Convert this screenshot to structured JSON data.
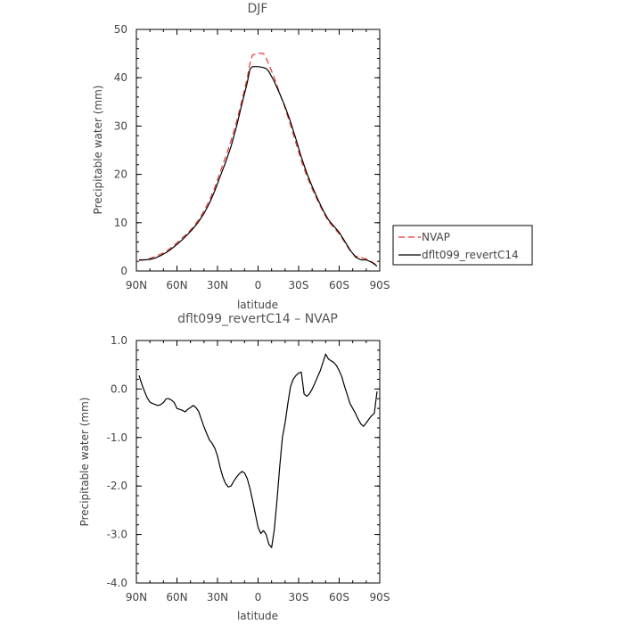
{
  "chart_data": [
    {
      "type": "line",
      "title": "DJF",
      "xlabel": "latitude",
      "ylabel": "Precipitable water (mm)",
      "x_ticks": [
        {
          "value": -90,
          "label": "90N"
        },
        {
          "value": -60,
          "label": "60N"
        },
        {
          "value": -30,
          "label": "30N"
        },
        {
          "value": 0,
          "label": "0"
        },
        {
          "value": 30,
          "label": "30S"
        },
        {
          "value": 60,
          "label": "60S"
        },
        {
          "value": 90,
          "label": "90S"
        }
      ],
      "y_ticks": [
        {
          "value": 0,
          "label": "0"
        },
        {
          "value": 10,
          "label": "10"
        },
        {
          "value": 20,
          "label": "20"
        },
        {
          "value": 30,
          "label": "30"
        },
        {
          "value": 40,
          "label": "40"
        },
        {
          "value": 50,
          "label": "50"
        }
      ],
      "xlim": [
        -90,
        90
      ],
      "ylim": [
        0,
        50
      ],
      "grid": false,
      "legend": "right, outside plot",
      "series": [
        {
          "name": "NVAP",
          "color": "#e8322a",
          "dash": "dashed",
          "x": [
            -88,
            -84,
            -80,
            -76,
            -72,
            -68,
            -64,
            -60,
            -56,
            -52,
            -48,
            -44,
            -40,
            -36,
            -32,
            -28,
            -24,
            -20,
            -16,
            -12,
            -8,
            -6,
            -4,
            0,
            4,
            6,
            8,
            12,
            16,
            20,
            24,
            28,
            32,
            36,
            40,
            44,
            48,
            52,
            56,
            60,
            64,
            68,
            72,
            76,
            80,
            84,
            88
          ],
          "y": [
            2.2,
            2.3,
            2.6,
            3.0,
            3.5,
            4.0,
            4.9,
            5.8,
            6.9,
            7.8,
            9.1,
            10.6,
            12.4,
            14.6,
            17.3,
            20.5,
            23.6,
            27.0,
            30.8,
            35.2,
            40.0,
            43.0,
            44.7,
            45.1,
            45.0,
            44.0,
            42.8,
            40.0,
            36.8,
            33.7,
            30.2,
            26.5,
            22.8,
            19.7,
            17.0,
            14.6,
            12.3,
            10.3,
            9.0,
            7.7,
            6.0,
            4.2,
            3.1,
            2.8,
            2.5,
            1.9,
            1.2
          ]
        },
        {
          "name": "dflt099_revertC14",
          "color": "#000000",
          "dash": "solid",
          "x": [
            -88,
            -84,
            -80,
            -76,
            -72,
            -68,
            -64,
            -60,
            -56,
            -52,
            -48,
            -44,
            -40,
            -36,
            -32,
            -28,
            -24,
            -20,
            -16,
            -12,
            -8,
            -6,
            -4,
            0,
            4,
            6,
            8,
            12,
            16,
            20,
            24,
            28,
            32,
            36,
            40,
            44,
            48,
            52,
            56,
            60,
            64,
            68,
            72,
            76,
            80,
            84,
            88
          ],
          "y": [
            2.3,
            2.3,
            2.4,
            2.7,
            3.2,
            3.8,
            4.6,
            5.5,
            6.5,
            7.6,
            8.8,
            10.2,
            11.9,
            14.0,
            16.6,
            19.6,
            22.5,
            25.8,
            29.8,
            34.5,
            39.0,
            41.8,
            42.3,
            42.3,
            42.1,
            41.9,
            41.3,
            39.2,
            36.7,
            34.0,
            30.9,
            27.3,
            23.6,
            20.3,
            17.5,
            15.0,
            12.6,
            10.6,
            9.3,
            8.0,
            6.2,
            4.4,
            2.9,
            2.3,
            2.3,
            1.8,
            1.0
          ]
        }
      ]
    },
    {
      "type": "line",
      "title": "dflt099_revertC14 – NVAP",
      "xlabel": "latitude",
      "ylabel": "Precipitable water (mm)",
      "x_ticks": [
        {
          "value": -90,
          "label": "90N"
        },
        {
          "value": -60,
          "label": "60N"
        },
        {
          "value": -30,
          "label": "30N"
        },
        {
          "value": 0,
          "label": "0"
        },
        {
          "value": 30,
          "label": "30S"
        },
        {
          "value": 60,
          "label": "60S"
        },
        {
          "value": 90,
          "label": "90S"
        }
      ],
      "y_ticks": [
        {
          "value": -4,
          "label": "-4.0"
        },
        {
          "value": -3,
          "label": "-3.0"
        },
        {
          "value": -2,
          "label": "-2.0"
        },
        {
          "value": -1,
          "label": "-1.0"
        },
        {
          "value": 0,
          "label": "0.0"
        },
        {
          "value": 1,
          "label": "1.0"
        }
      ],
      "xlim": [
        -90,
        90
      ],
      "ylim": [
        -4,
        1
      ],
      "grid": false,
      "series": [
        {
          "color": "#000000",
          "dash": "solid",
          "x": [
            -88,
            -86,
            -84,
            -82,
            -80,
            -78,
            -76,
            -74,
            -72,
            -70,
            -68,
            -66,
            -64,
            -62,
            -60,
            -58,
            -56,
            -54,
            -52,
            -50,
            -48,
            -46,
            -44,
            -42,
            -40,
            -38,
            -36,
            -34,
            -32,
            -30,
            -28,
            -26,
            -24,
            -22,
            -20,
            -18,
            -16,
            -14,
            -12,
            -10,
            -8,
            -6,
            -4,
            -2,
            0,
            2,
            4,
            6,
            8,
            10,
            12,
            14,
            16,
            18,
            20,
            22,
            24,
            26,
            28,
            30,
            32,
            34,
            36,
            38,
            40,
            42,
            44,
            46,
            48,
            50,
            52,
            54,
            56,
            58,
            60,
            62,
            64,
            66,
            68,
            70,
            72,
            74,
            76,
            78,
            80,
            82,
            84,
            86,
            88
          ],
          "y": [
            0.28,
            0.1,
            -0.05,
            -0.18,
            -0.27,
            -0.3,
            -0.32,
            -0.34,
            -0.32,
            -0.28,
            -0.2,
            -0.2,
            -0.23,
            -0.28,
            -0.4,
            -0.42,
            -0.44,
            -0.47,
            -0.42,
            -0.38,
            -0.34,
            -0.38,
            -0.46,
            -0.62,
            -0.78,
            -0.92,
            -1.05,
            -1.12,
            -1.22,
            -1.38,
            -1.62,
            -1.82,
            -1.95,
            -2.02,
            -2.0,
            -1.9,
            -1.82,
            -1.75,
            -1.7,
            -1.73,
            -1.85,
            -2.05,
            -2.3,
            -2.58,
            -2.85,
            -2.98,
            -2.92,
            -3.0,
            -3.2,
            -3.27,
            -2.9,
            -2.3,
            -1.6,
            -1.0,
            -0.7,
            -0.3,
            0.05,
            0.2,
            0.28,
            0.33,
            0.35,
            -0.1,
            -0.15,
            -0.1,
            0.0,
            0.12,
            0.25,
            0.38,
            0.55,
            0.72,
            0.62,
            0.58,
            0.55,
            0.48,
            0.38,
            0.25,
            0.05,
            -0.12,
            -0.3,
            -0.4,
            -0.5,
            -0.62,
            -0.72,
            -0.77,
            -0.7,
            -0.62,
            -0.55,
            -0.5,
            -0.05
          ]
        }
      ]
    }
  ]
}
